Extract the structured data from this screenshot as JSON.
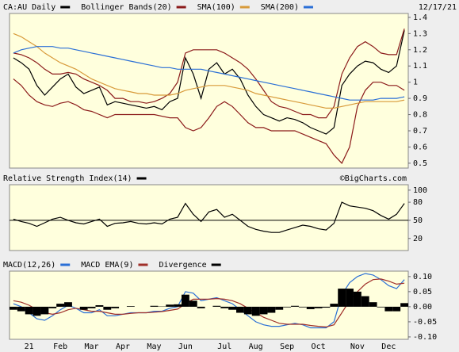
{
  "chart_data": [
    {
      "type": "line",
      "date": "12/17/21",
      "ylim": [
        0.47,
        1.424
      ],
      "yticks": [
        0.5,
        0.6,
        0.7,
        0.8,
        0.9,
        1,
        1.1,
        1.2,
        1.3,
        1.4
      ],
      "series": [
        {
          "name": "CA:AU Daily",
          "color": "#000000",
          "values": [
            1.15,
            1.12,
            1.08,
            0.98,
            0.92,
            0.97,
            1.02,
            1.05,
            0.97,
            0.93,
            0.95,
            0.97,
            0.86,
            0.88,
            0.87,
            0.86,
            0.85,
            0.84,
            0.85,
            0.83,
            0.88,
            0.9,
            1.15,
            1.05,
            0.9,
            1.08,
            1.12,
            1.05,
            1.08,
            1.02,
            0.92,
            0.85,
            0.8,
            0.78,
            0.76,
            0.78,
            0.77,
            0.75,
            0.72,
            0.7,
            0.68,
            0.72,
            0.98,
            1.05,
            1.1,
            1.13,
            1.12,
            1.08,
            1.06,
            1.1,
            1.32
          ]
        },
        {
          "name": "Bollinger Bands(20)",
          "color": "#8b1a1a",
          "upper": [
            1.18,
            1.17,
            1.15,
            1.12,
            1.08,
            1.05,
            1.05,
            1.06,
            1.05,
            1.02,
            1,
            0.98,
            0.95,
            0.9,
            0.9,
            0.88,
            0.88,
            0.87,
            0.88,
            0.9,
            0.93,
            1,
            1.18,
            1.2,
            1.2,
            1.2,
            1.2,
            1.18,
            1.15,
            1.12,
            1.08,
            1.02,
            0.95,
            0.88,
            0.85,
            0.84,
            0.82,
            0.8,
            0.8,
            0.78,
            0.78,
            0.85,
            1.05,
            1.15,
            1.22,
            1.25,
            1.22,
            1.18,
            1.17,
            1.17,
            1.33
          ],
          "lower": [
            1.02,
            0.98,
            0.92,
            0.88,
            0.86,
            0.85,
            0.87,
            0.88,
            0.86,
            0.83,
            0.82,
            0.8,
            0.78,
            0.8,
            0.8,
            0.8,
            0.8,
            0.8,
            0.8,
            0.79,
            0.78,
            0.78,
            0.72,
            0.7,
            0.72,
            0.78,
            0.85,
            0.88,
            0.85,
            0.8,
            0.75,
            0.72,
            0.72,
            0.7,
            0.7,
            0.7,
            0.7,
            0.68,
            0.66,
            0.64,
            0.62,
            0.55,
            0.5,
            0.6,
            0.85,
            0.95,
            1,
            1,
            0.98,
            0.98,
            0.95
          ]
        },
        {
          "name": "SMA(100)",
          "color": "#d89a3a",
          "values": [
            1.3,
            1.28,
            1.25,
            1.22,
            1.18,
            1.15,
            1.12,
            1.1,
            1.08,
            1.05,
            1.02,
            1,
            0.98,
            0.96,
            0.95,
            0.94,
            0.93,
            0.93,
            0.92,
            0.92,
            0.92,
            0.93,
            0.95,
            0.96,
            0.97,
            0.98,
            0.98,
            0.98,
            0.97,
            0.96,
            0.95,
            0.93,
            0.92,
            0.91,
            0.9,
            0.89,
            0.88,
            0.87,
            0.86,
            0.85,
            0.84,
            0.84,
            0.85,
            0.86,
            0.87,
            0.88,
            0.88,
            0.88,
            0.88,
            0.88,
            0.89
          ]
        },
        {
          "name": "SMA(200)",
          "color": "#2a6fd6",
          "values": [
            1.18,
            1.2,
            1.21,
            1.22,
            1.22,
            1.22,
            1.21,
            1.21,
            1.2,
            1.19,
            1.18,
            1.17,
            1.16,
            1.15,
            1.14,
            1.13,
            1.12,
            1.11,
            1.1,
            1.09,
            1.09,
            1.08,
            1.08,
            1.08,
            1.08,
            1.07,
            1.06,
            1.05,
            1.04,
            1.03,
            1.02,
            1.01,
            1,
            0.99,
            0.98,
            0.97,
            0.96,
            0.95,
            0.94,
            0.93,
            0.92,
            0.91,
            0.9,
            0.89,
            0.89,
            0.89,
            0.89,
            0.9,
            0.9,
            0.9,
            0.91
          ]
        }
      ]
    },
    {
      "type": "line",
      "annotation": "©BigCharts.com",
      "hline": 50,
      "ylim": [
        0,
        109
      ],
      "yticks": [
        20,
        50,
        80,
        100
      ],
      "series": [
        {
          "name": "Relative Strength Index(14)",
          "color": "#000000",
          "values": [
            52,
            48,
            45,
            40,
            46,
            52,
            55,
            50,
            46,
            44,
            48,
            52,
            40,
            45,
            46,
            48,
            45,
            44,
            46,
            44,
            52,
            55,
            78,
            60,
            48,
            64,
            68,
            55,
            60,
            50,
            40,
            35,
            32,
            30,
            30,
            34,
            38,
            42,
            40,
            36,
            34,
            45,
            80,
            74,
            72,
            70,
            66,
            58,
            52,
            60,
            78
          ]
        }
      ]
    },
    {
      "type": "line",
      "ylim": [
        -0.108,
        0.118
      ],
      "yticks": [
        {
          "value": -0.1,
          "label": "-0.10"
        },
        {
          "value": -0.05,
          "label": "-0.05"
        },
        {
          "value": 0,
          "label": "0.00"
        },
        {
          "value": 0.05,
          "label": "0.05"
        },
        {
          "value": 0.1,
          "label": "0.10"
        }
      ],
      "categories": [
        null,
        null,
        "21",
        null,
        null,
        null,
        "Feb",
        null,
        null,
        null,
        "Mar",
        null,
        null,
        null,
        "Apr",
        null,
        null,
        null,
        "May",
        null,
        null,
        null,
        "Jun",
        null,
        null,
        null,
        null,
        "Jul",
        null,
        null,
        null,
        "Aug",
        null,
        null,
        null,
        "Sep",
        null,
        null,
        null,
        "Oct",
        null,
        null,
        null,
        null,
        "Nov",
        null,
        null,
        null,
        "Dec",
        null,
        null
      ],
      "series": [
        {
          "name": "MACD(12,26)",
          "color": "#2a6fd6",
          "values": [
            0.01,
            0,
            -0.02,
            -0.04,
            -0.045,
            -0.03,
            -0.01,
            0.005,
            -0.005,
            -0.02,
            -0.02,
            -0.01,
            -0.03,
            -0.03,
            -0.025,
            -0.02,
            -0.02,
            -0.02,
            -0.015,
            -0.015,
            -0.005,
            0,
            0.05,
            0.045,
            0.02,
            0.025,
            0.03,
            0.02,
            0.01,
            -0.01,
            -0.03,
            -0.05,
            -0.06,
            -0.065,
            -0.065,
            -0.06,
            -0.055,
            -0.06,
            -0.07,
            -0.07,
            -0.07,
            -0.05,
            0.04,
            0.08,
            0.1,
            0.11,
            0.105,
            0.09,
            0.07,
            0.06,
            0.09
          ]
        },
        {
          "name": "MACD EMA(9)",
          "color": "#a0302a",
          "values": [
            0.02,
            0.015,
            0.005,
            -0.01,
            -0.02,
            -0.025,
            -0.02,
            -0.01,
            -0.005,
            -0.01,
            -0.015,
            -0.015,
            -0.02,
            -0.025,
            -0.025,
            -0.022,
            -0.02,
            -0.02,
            -0.018,
            -0.016,
            -0.012,
            -0.008,
            0.01,
            0.025,
            0.025,
            0.025,
            0.027,
            0.025,
            0.02,
            0.01,
            -0.005,
            -0.02,
            -0.035,
            -0.045,
            -0.055,
            -0.058,
            -0.058,
            -0.058,
            -0.062,
            -0.065,
            -0.067,
            -0.06,
            -0.02,
            0.02,
            0.05,
            0.075,
            0.09,
            0.092,
            0.085,
            0.075,
            0.078
          ]
        },
        {
          "name": "Divergence",
          "color": "#000000",
          "type": "bar",
          "values": [
            -0.01,
            -0.015,
            -0.025,
            -0.03,
            -0.025,
            -0.005,
            0.01,
            0.015,
            0,
            -0.01,
            -0.005,
            0.005,
            -0.01,
            -0.005,
            0,
            0.002,
            0,
            0,
            0.003,
            0.001,
            0.007,
            0.008,
            0.04,
            0.02,
            -0.005,
            0,
            0.003,
            -0.005,
            -0.01,
            -0.02,
            -0.025,
            -0.03,
            -0.025,
            -0.02,
            -0.01,
            -0.002,
            0.003,
            -0.002,
            -0.008,
            -0.005,
            -0.003,
            0.01,
            0.06,
            0.06,
            0.05,
            0.035,
            0.015,
            -0.002,
            -0.015,
            -0.015,
            0.012
          ]
        }
      ]
    }
  ]
}
